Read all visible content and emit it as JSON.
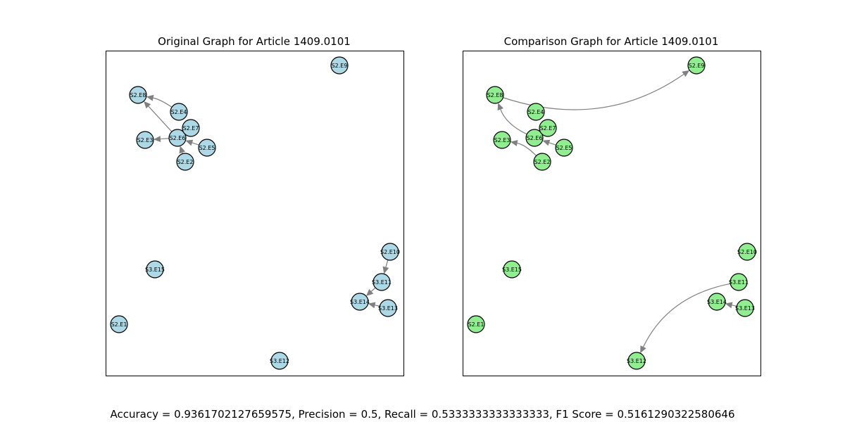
{
  "metrics_text": "Accuracy = 0.9361702127659575, Precision = 0.5, Recall = 0.5333333333333333, F1 Score = 0.5161290322580646",
  "colors": {
    "original_node": "#add8e6",
    "comparison_node": "#90ee90",
    "edge": "#808080",
    "node_stroke": "#000000"
  },
  "nodes": [
    "S2.E1",
    "S2.E2",
    "S2.E3",
    "S2.E4",
    "S2.E5",
    "S2.E6",
    "S2.E7",
    "S2.E8",
    "S2.E9",
    "S2.E10",
    "S3.E11",
    "S3.E12",
    "S3.E13",
    "S3.E14",
    "S3.E15"
  ],
  "panels": [
    {
      "id": "original",
      "title": "Original Graph for Article 1409.0101",
      "node_color_key": "original_node",
      "edges": [
        {
          "from": "S2.E4",
          "to": "S2.E8"
        },
        {
          "from": "S2.E6",
          "to": "S2.E8"
        },
        {
          "from": "S2.E6",
          "to": "S2.E3"
        },
        {
          "from": "S2.E2",
          "to": "S2.E6"
        },
        {
          "from": "S2.E5",
          "to": "S2.E6"
        },
        {
          "from": "S2.E10",
          "to": "S3.E11"
        },
        {
          "from": "S3.E11",
          "to": "S3.E14"
        },
        {
          "from": "S3.E13",
          "to": "S3.E14"
        }
      ]
    },
    {
      "id": "comparison",
      "title": "Comparison Graph for Article 1409.0101",
      "node_color_key": "comparison_node",
      "edges": [
        {
          "from": "S2.E8",
          "to": "S2.E9"
        },
        {
          "from": "S2.E6",
          "to": "S2.E8"
        },
        {
          "from": "S2.E2",
          "to": "S2.E3"
        },
        {
          "from": "S2.E5",
          "to": "S2.E6"
        },
        {
          "from": "S3.E11",
          "to": "S3.E12"
        },
        {
          "from": "S3.E13",
          "to": "S3.E14"
        }
      ]
    }
  ]
}
